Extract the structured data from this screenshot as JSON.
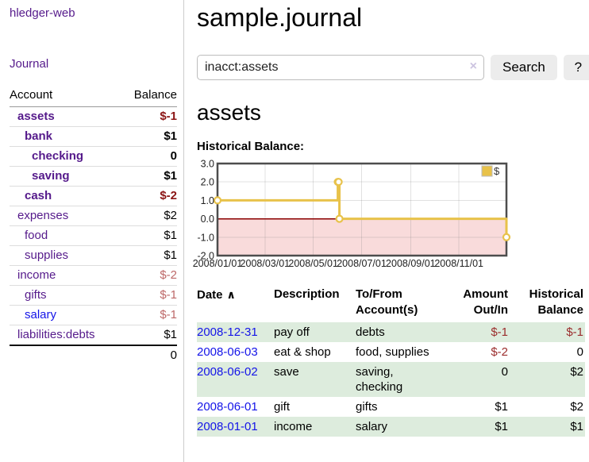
{
  "app_title": "hledger-web",
  "ui_colors": {
    "link_purple": "#551a8b",
    "link_blue": "#1414e8",
    "negative_strong": "#8b1414",
    "negative_soft": "#bd6868",
    "table_negative": "#9b2d2d",
    "row_green": "#ddecdd"
  },
  "sidebar": {
    "journal_link": "Journal",
    "accounts": {
      "header_account": "Account",
      "header_balance": "Balance",
      "rows": [
        {
          "name": "assets",
          "balance": "$-1"
        },
        {
          "name": "bank",
          "balance": "$1"
        },
        {
          "name": "checking",
          "balance": "0"
        },
        {
          "name": "saving",
          "balance": "$1"
        },
        {
          "name": "cash",
          "balance": "$-2"
        },
        {
          "name": "expenses",
          "balance": "$2"
        },
        {
          "name": "food",
          "balance": "$1"
        },
        {
          "name": "supplies",
          "balance": "$1"
        },
        {
          "name": "income",
          "balance": "$-2"
        },
        {
          "name": "gifts",
          "balance": "$-1"
        },
        {
          "name": "salary",
          "balance": "$-1"
        },
        {
          "name": "liabilities:debts",
          "balance": "$1"
        }
      ],
      "total": "0"
    }
  },
  "header": {
    "title": "sample.journal"
  },
  "search": {
    "value": "inacct:assets",
    "clear_icon": "×",
    "search_button": "Search",
    "help_button": "?"
  },
  "account_page": {
    "title": "assets",
    "section_label": "Historical Balance:"
  },
  "chart_data": {
    "type": "line",
    "step": true,
    "title": "Historical Balance:",
    "series": [
      {
        "name": "$",
        "color": "#e8c24a",
        "points": [
          {
            "date": "2008-01-01",
            "value": 1
          },
          {
            "date": "2008-06-01",
            "value": 2
          },
          {
            "date": "2008-06-02",
            "value": 2
          },
          {
            "date": "2008-06-03",
            "value": 0
          },
          {
            "date": "2008-12-31",
            "value": -1
          }
        ]
      }
    ],
    "x_range": [
      "2008-01-01",
      "2008-12-31"
    ],
    "ylim": [
      -2,
      3
    ],
    "x_ticks": [
      "2008/01/01",
      "2008/03/01",
      "2008/05/01",
      "2008/07/01",
      "2008/09/01",
      "2008/11/01"
    ],
    "y_ticks": [
      "3.0",
      "2.0",
      "1.0",
      "0.0",
      "-1.0",
      "-2.0"
    ],
    "legend": {
      "label": "$",
      "position": "top-right"
    },
    "colors": {
      "negative_fill": "#f9dbdb",
      "zero_line": "#8b0000",
      "border": "#4d4d4d",
      "grid": "rgba(120,120,120,0.22)",
      "marker_fill": "#ffffff"
    }
  },
  "register": {
    "headers": {
      "date": "Date",
      "sort_icon": "∧",
      "description": "Description",
      "accounts": "To/From Account(s)",
      "amount": "Amount Out/In",
      "balance": "Historical Balance"
    },
    "rows": [
      {
        "date": "2008-12-31",
        "description": "pay off",
        "accounts": "debts",
        "amount": "$-1",
        "balance": "$-1"
      },
      {
        "date": "2008-06-03",
        "description": "eat & shop",
        "accounts": "food, supplies",
        "amount": "$-2",
        "balance": "0"
      },
      {
        "date": "2008-06-02",
        "description": "save",
        "accounts": "saving, checking",
        "amount": "0",
        "balance": "$2"
      },
      {
        "date": "2008-06-01",
        "description": "gift",
        "accounts": "gifts",
        "amount": "$1",
        "balance": "$2"
      },
      {
        "date": "2008-01-01",
        "description": "income",
        "accounts": "salary",
        "amount": "$1",
        "balance": "$1"
      }
    ]
  }
}
